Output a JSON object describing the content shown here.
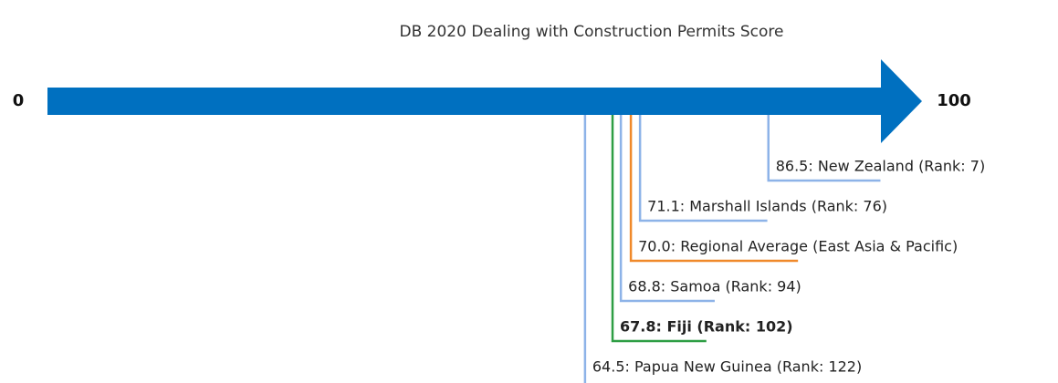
{
  "chart_data": {
    "type": "score-line",
    "title": "DB 2020 Dealing with Construction Permits Score",
    "xlim": [
      0,
      100
    ],
    "xticks": [
      0,
      100
    ],
    "arrow_color": "#0070c0",
    "values": [
      86.5,
      71.1,
      70.0,
      68.8,
      67.8,
      64.5
    ],
    "value_labels": [
      "86.5: New Zealand (Rank: 7)",
      "71.1: Marshall Islands (Rank: 76)",
      "70.0: Regional Average (East Asia & Pacific)",
      "68.8: Samoa (Rank: 94)",
      "67.8: Fiji (Rank: 102)",
      "64.5: Papua New Guinea (Rank: 122)"
    ],
    "colors": [
      "#8db3e8",
      "#8db3e8",
      "#f0892a",
      "#8db3e8",
      "#2e9e44",
      "#8db3e8"
    ],
    "bold": [
      false,
      false,
      false,
      false,
      true,
      false
    ]
  }
}
